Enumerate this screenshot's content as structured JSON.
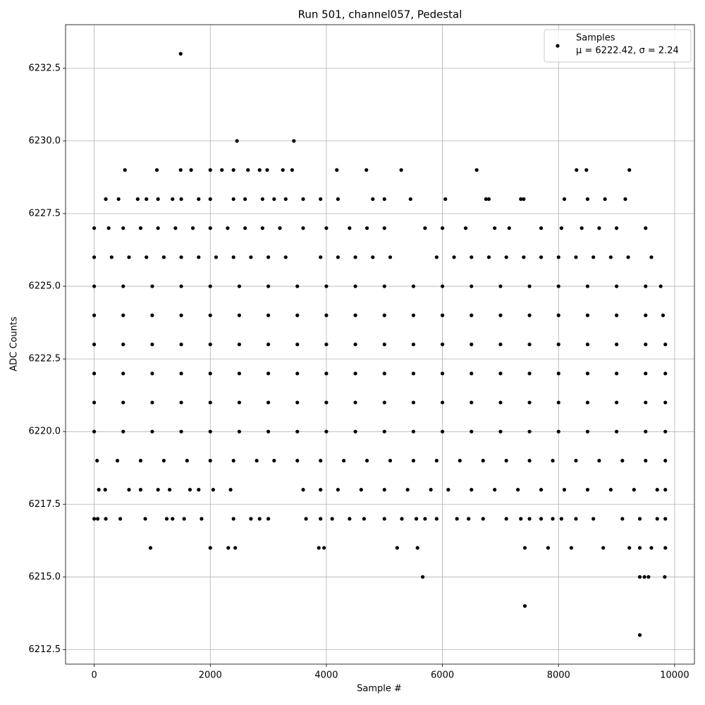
{
  "chart_data": {
    "type": "scatter",
    "title": "Run 501, channel057, Pedestal",
    "x_label": "Sample #",
    "y_label": "ADC Counts",
    "xlim": [
      -493,
      10341
    ],
    "ylim": [
      6212.0,
      6234.0
    ],
    "xticks": [
      0,
      2000,
      4000,
      6000,
      8000,
      10000
    ],
    "yticks": [
      6212.5,
      {
        "value": 6215,
        "label": "6215.0"
      },
      6217.5,
      {
        "value": 6220,
        "label": "6220.0"
      },
      6222.5,
      {
        "value": 6225,
        "label": "6225.0"
      },
      6227.5,
      {
        "value": 6230,
        "label": "6230.0"
      },
      6232.5
    ],
    "grid": true,
    "legend": "upper right",
    "series": [
      {
        "name": "Samples",
        "stats_label": "μ = 6222.42, σ = 2.24",
        "color": "#000000",
        "x": [
          0,
          500,
          1000,
          1500,
          2000,
          2500,
          3000,
          3500,
          4000,
          4500,
          5000,
          5500,
          6000,
          6500,
          7000,
          7500,
          8000,
          8500,
          9000,
          9500,
          9840,
          0,
          500,
          1000,
          1500,
          2000,
          2500,
          3000,
          3500,
          4000,
          4500,
          5000,
          5500,
          6000,
          6500,
          7000,
          7500,
          8000,
          8500,
          9000,
          9500,
          9840,
          0,
          500,
          1000,
          1500,
          2000,
          2500,
          3000,
          3500,
          4000,
          4500,
          5000,
          5500,
          6000,
          6500,
          7000,
          7500,
          8000,
          8500,
          9000,
          9500,
          9840,
          0,
          500,
          1000,
          1500,
          2000,
          2500,
          3000,
          3500,
          4000,
          4500,
          5000,
          5500,
          6000,
          6500,
          7000,
          7500,
          8000,
          8500,
          9000,
          9500,
          9840,
          0,
          500,
          1000,
          1500,
          2000,
          2500,
          3000,
          3500,
          4000,
          4500,
          5000,
          5500,
          6000,
          6500,
          7000,
          7500,
          8000,
          8500,
          9000,
          9500,
          9800,
          0,
          500,
          1000,
          1500,
          2000,
          2500,
          3000,
          3500,
          4000,
          4500,
          5000,
          5500,
          6000,
          6500,
          7000,
          7500,
          8000,
          8500,
          9000,
          9500,
          9760,
          0,
          300,
          600,
          900,
          1200,
          1500,
          1800,
          2100,
          2400,
          2700,
          3000,
          3300,
          3900,
          4200,
          4500,
          4800,
          5100,
          5900,
          6200,
          6500,
          6800,
          7100,
          7400,
          7700,
          8000,
          8300,
          8600,
          8900,
          9200,
          9600,
          50,
          400,
          800,
          1200,
          1600,
          2000,
          2400,
          2800,
          3100,
          3500,
          3900,
          4300,
          4700,
          5100,
          5500,
          5900,
          6300,
          6700,
          7100,
          7500,
          7900,
          8300,
          8700,
          9100,
          9500,
          9840,
          0,
          250,
          500,
          800,
          1100,
          1400,
          1700,
          2000,
          2300,
          2600,
          2900,
          3200,
          3600,
          4000,
          4400,
          4700,
          5000,
          5700,
          6000,
          6400,
          6900,
          7150,
          7700,
          8050,
          8400,
          8700,
          9000,
          9500,
          80,
          190,
          600,
          800,
          1100,
          1300,
          1650,
          1800,
          2050,
          2350,
          3600,
          3900,
          4200,
          4600,
          5000,
          5400,
          5800,
          6100,
          6500,
          6900,
          7300,
          7700,
          8100,
          8500,
          8900,
          9300,
          9700,
          9840,
          200,
          420,
          750,
          900,
          1100,
          1350,
          1500,
          1800,
          2000,
          2400,
          2600,
          2900,
          3100,
          3300,
          3600,
          3900,
          4200,
          4800,
          5000,
          5450,
          6050,
          6750,
          6800,
          7350,
          7400,
          8100,
          8500,
          8800,
          9150,
          0,
          60,
          200,
          450,
          880,
          1250,
          1350,
          1550,
          1850,
          2400,
          2700,
          2850,
          3000,
          3650,
          3900,
          4100,
          4400,
          4650,
          5000,
          5300,
          5550,
          5700,
          5900,
          6250,
          6450,
          6700,
          7100,
          7350,
          7500,
          7700,
          7900,
          8050,
          8300,
          8600,
          9100,
          9400,
          9700,
          9840,
          530,
          1080,
          1490,
          1670,
          2000,
          2200,
          2400,
          2650,
          2850,
          2980,
          3250,
          3410,
          4180,
          4690,
          5290,
          6590,
          8310,
          8480,
          9220,
          970,
          2000,
          2310,
          2430,
          3870,
          3960,
          5220,
          5570,
          7420,
          7820,
          8220,
          8770,
          9220,
          9400,
          9600,
          9840,
          5660,
          9400,
          9480,
          9550,
          9830,
          2460,
          3440,
          1490,
          7420,
          9400
        ],
        "values": [
          6220,
          6220,
          6220,
          6220,
          6220,
          6220,
          6220,
          6220,
          6220,
          6220,
          6220,
          6220,
          6220,
          6220,
          6220,
          6220,
          6220,
          6220,
          6220,
          6220,
          6220,
          6221,
          6221,
          6221,
          6221,
          6221,
          6221,
          6221,
          6221,
          6221,
          6221,
          6221,
          6221,
          6221,
          6221,
          6221,
          6221,
          6221,
          6221,
          6221,
          6221,
          6221,
          6222,
          6222,
          6222,
          6222,
          6222,
          6222,
          6222,
          6222,
          6222,
          6222,
          6222,
          6222,
          6222,
          6222,
          6222,
          6222,
          6222,
          6222,
          6222,
          6222,
          6222,
          6223,
          6223,
          6223,
          6223,
          6223,
          6223,
          6223,
          6223,
          6223,
          6223,
          6223,
          6223,
          6223,
          6223,
          6223,
          6223,
          6223,
          6223,
          6223,
          6223,
          6223,
          6224,
          6224,
          6224,
          6224,
          6224,
          6224,
          6224,
          6224,
          6224,
          6224,
          6224,
          6224,
          6224,
          6224,
          6224,
          6224,
          6224,
          6224,
          6224,
          6224,
          6224,
          6225,
          6225,
          6225,
          6225,
          6225,
          6225,
          6225,
          6225,
          6225,
          6225,
          6225,
          6225,
          6225,
          6225,
          6225,
          6225,
          6225,
          6225,
          6225,
          6225,
          6225,
          6226,
          6226,
          6226,
          6226,
          6226,
          6226,
          6226,
          6226,
          6226,
          6226,
          6226,
          6226,
          6226,
          6226,
          6226,
          6226,
          6226,
          6226,
          6226,
          6226,
          6226,
          6226,
          6226,
          6226,
          6226,
          6226,
          6226,
          6226,
          6226,
          6226,
          6219,
          6219,
          6219,
          6219,
          6219,
          6219,
          6219,
          6219,
          6219,
          6219,
          6219,
          6219,
          6219,
          6219,
          6219,
          6219,
          6219,
          6219,
          6219,
          6219,
          6219,
          6219,
          6219,
          6219,
          6219,
          6219,
          6227,
          6227,
          6227,
          6227,
          6227,
          6227,
          6227,
          6227,
          6227,
          6227,
          6227,
          6227,
          6227,
          6227,
          6227,
          6227,
          6227,
          6227,
          6227,
          6227,
          6227,
          6227,
          6227,
          6227,
          6227,
          6227,
          6227,
          6227,
          6218,
          6218,
          6218,
          6218,
          6218,
          6218,
          6218,
          6218,
          6218,
          6218,
          6218,
          6218,
          6218,
          6218,
          6218,
          6218,
          6218,
          6218,
          6218,
          6218,
          6218,
          6218,
          6218,
          6218,
          6218,
          6218,
          6218,
          6218,
          6228,
          6228,
          6228,
          6228,
          6228,
          6228,
          6228,
          6228,
          6228,
          6228,
          6228,
          6228,
          6228,
          6228,
          6228,
          6228,
          6228,
          6228,
          6228,
          6228,
          6228,
          6228,
          6228,
          6228,
          6228,
          6228,
          6228,
          6228,
          6228,
          6217,
          6217,
          6217,
          6217,
          6217,
          6217,
          6217,
          6217,
          6217,
          6217,
          6217,
          6217,
          6217,
          6217,
          6217,
          6217,
          6217,
          6217,
          6217,
          6217,
          6217,
          6217,
          6217,
          6217,
          6217,
          6217,
          6217,
          6217,
          6217,
          6217,
          6217,
          6217,
          6217,
          6217,
          6217,
          6217,
          6217,
          6217,
          6229,
          6229,
          6229,
          6229,
          6229,
          6229,
          6229,
          6229,
          6229,
          6229,
          6229,
          6229,
          6229,
          6229,
          6229,
          6229,
          6229,
          6229,
          6229,
          6216,
          6216,
          6216,
          6216,
          6216,
          6216,
          6216,
          6216,
          6216,
          6216,
          6216,
          6216,
          6216,
          6216,
          6216,
          6216,
          6215,
          6215,
          6215,
          6215,
          6215,
          6230,
          6230,
          6233,
          6214,
          6213
        ]
      }
    ]
  }
}
